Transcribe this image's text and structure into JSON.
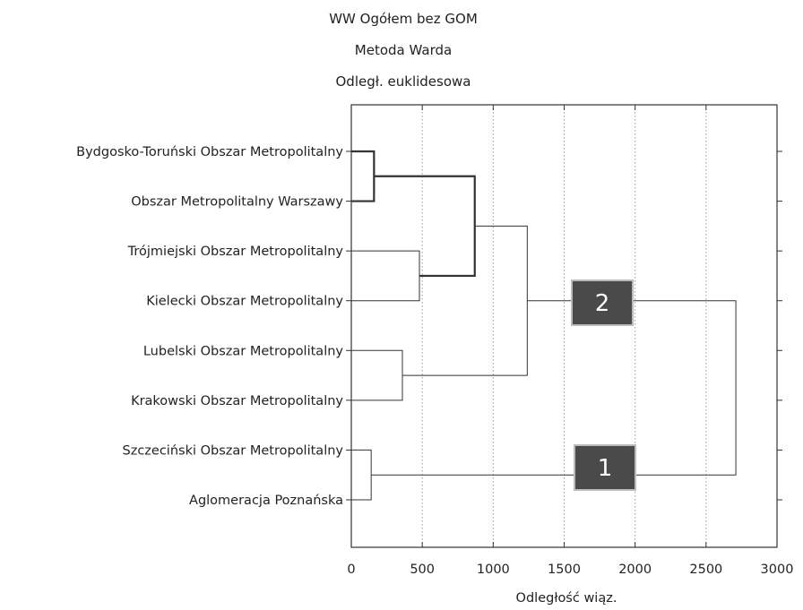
{
  "chart_data": {
    "type": "dendrogram",
    "title_lines": [
      "WW Ogółem bez GOM",
      "Metoda Warda",
      "Odległ. euklidesowa"
    ],
    "xlabel": "Odległość wiąz.",
    "xlim": [
      0,
      3000
    ],
    "xticks": [
      0,
      500,
      1000,
      1500,
      2000,
      2500,
      3000
    ],
    "grid": "vertical dotted",
    "leaves": [
      "Bydgosko-Toruński Obszar Metropolitalny",
      "Obszar Metropolitalny Warszawy",
      "Trójmiejski Obszar Metropolitalny",
      "Kielecki Obszar Metropolitalny",
      "Lubelski Obszar Metropolitalny",
      "Krakowski Obszar Metropolitalny",
      "Szczeciński Obszar Metropolitalny",
      "Aglomeracja Poznańska"
    ],
    "merges": [
      {
        "a": "L0",
        "b": "L1",
        "height": 160,
        "id": "M1",
        "bold": true
      },
      {
        "a": "L2",
        "b": "L3",
        "height": 480,
        "id": "M2",
        "bold": false
      },
      {
        "a": "L4",
        "b": "L5",
        "height": 360,
        "id": "M3",
        "bold": false
      },
      {
        "a": "L6",
        "b": "L7",
        "height": 140,
        "id": "M4",
        "bold": false
      },
      {
        "a": "M1",
        "b": "M2",
        "height": 870,
        "id": "M5",
        "bold": true
      },
      {
        "a": "M5",
        "b": "M3",
        "height": 1240,
        "id": "M6",
        "bold": false
      },
      {
        "a": "M6",
        "b": "M4",
        "height": 2710,
        "id": "M7",
        "bold": false
      }
    ],
    "cluster_labels": [
      {
        "text": "2",
        "near": "M6"
      },
      {
        "text": "1",
        "near": "M4"
      }
    ],
    "colors": {
      "line": "#333333",
      "grid": "#999999",
      "cluster_box": "#4a4a4a",
      "cluster_text": "#ffffff"
    }
  }
}
